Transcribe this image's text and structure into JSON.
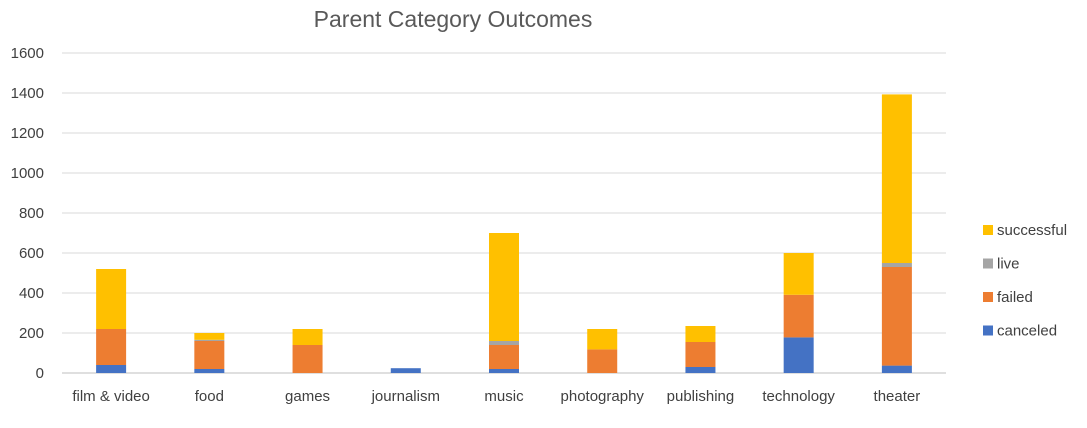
{
  "chart_data": {
    "type": "bar",
    "stacked": true,
    "title": "Parent Category Outcomes",
    "xlabel": "",
    "ylabel": "",
    "ylim": [
      0,
      1600
    ],
    "yticks": [
      0,
      200,
      400,
      600,
      800,
      1000,
      1200,
      1400,
      1600
    ],
    "grid": true,
    "legend_position": "right",
    "categories": [
      "film & video",
      "food",
      "games",
      "journalism",
      "music",
      "photography",
      "publishing",
      "technology",
      "theater"
    ],
    "series": [
      {
        "name": "canceled",
        "color": "#4472C4",
        "values": [
          40,
          20,
          0,
          24,
          20,
          0,
          30,
          178,
          37
        ]
      },
      {
        "name": "failed",
        "color": "#ED7D31",
        "values": [
          180,
          140,
          140,
          0,
          120,
          118,
          125,
          213,
          493
        ]
      },
      {
        "name": "live",
        "color": "#A5A5A5",
        "values": [
          0,
          6,
          0,
          0,
          20,
          0,
          0,
          0,
          20
        ]
      },
      {
        "name": "successful",
        "color": "#FFC000",
        "values": [
          300,
          34,
          80,
          0,
          540,
          102,
          80,
          209,
          843
        ]
      }
    ]
  }
}
